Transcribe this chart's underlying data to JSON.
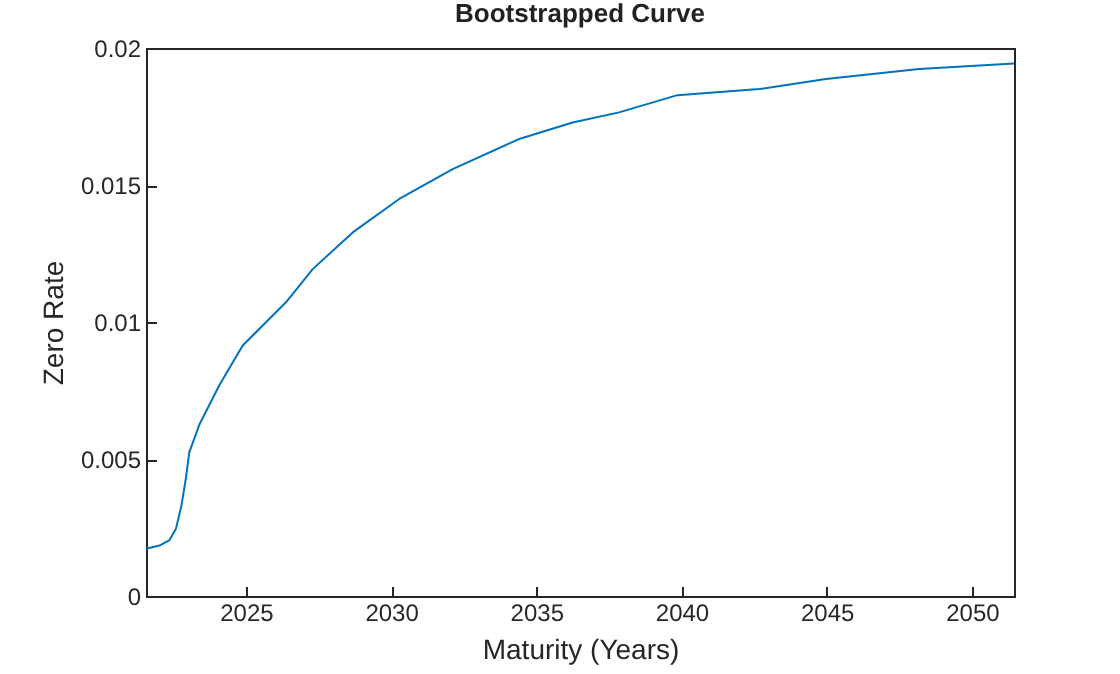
{
  "chart_data": {
    "type": "line",
    "title": "Bootstrapped Curve",
    "xlabel": "Maturity (Years)",
    "ylabel": "Zero Rate",
    "x": [
      2021.56,
      2022.02,
      2022.36,
      2022.59,
      2022.78,
      2022.93,
      2023.05,
      2023.4,
      2024.08,
      2024.89,
      2026.38,
      2027.3,
      2028.68,
      2030.28,
      2032.12,
      2034.41,
      2036.25,
      2037.85,
      2039.86,
      2042.68,
      2044.97,
      2048.18,
      2051.45
    ],
    "series": [
      {
        "color": "#0072bd",
        "values": [
          0.00172,
          0.00184,
          0.00203,
          0.00245,
          0.0033,
          0.00427,
          0.00524,
          0.00626,
          0.00768,
          0.00914,
          0.01072,
          0.01193,
          0.01327,
          0.01449,
          0.01558,
          0.01668,
          0.01728,
          0.01765,
          0.01828,
          0.0185,
          0.01887,
          0.01923,
          0.01943
        ]
      }
    ],
    "xlim": [
      2021.56,
      2051.45
    ],
    "xticks": [
      2025,
      2030,
      2035,
      2040,
      2045,
      2050
    ],
    "ylim": [
      0,
      0.02
    ],
    "yticks": [
      0,
      0.005,
      0.01,
      0.015,
      0.02
    ],
    "grid": false,
    "marker": "none",
    "line_style": "solid"
  }
}
